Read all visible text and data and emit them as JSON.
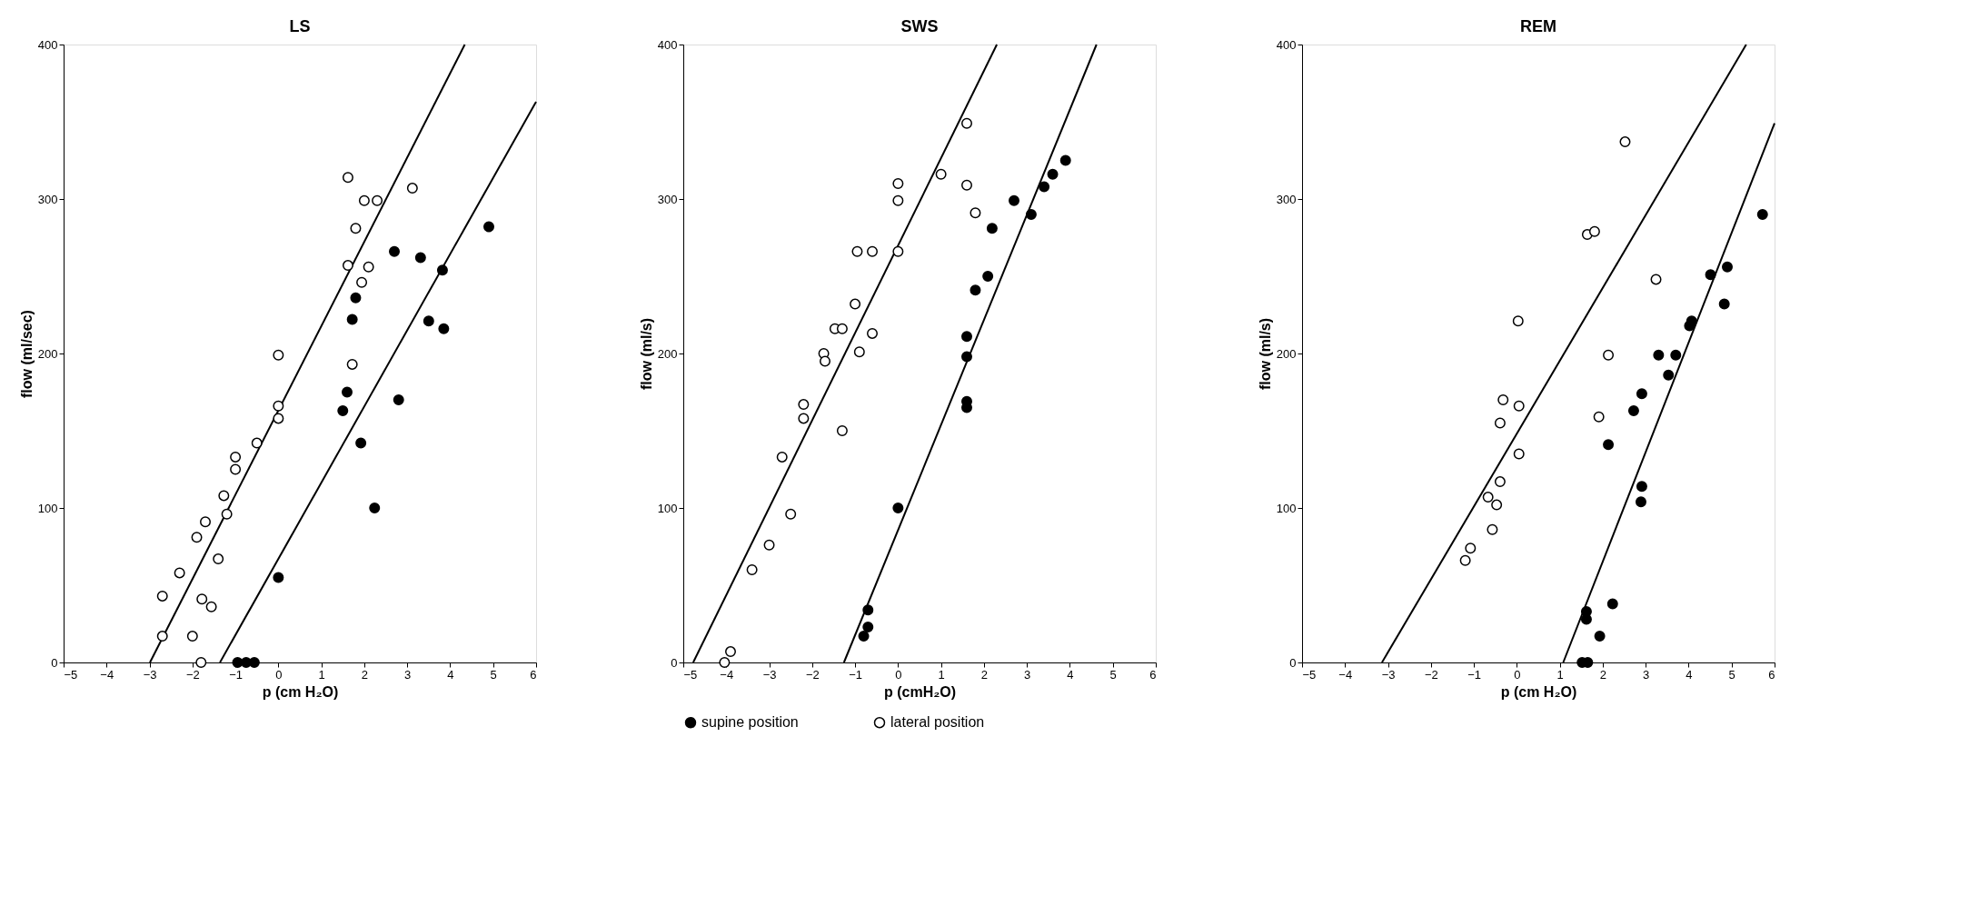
{
  "chart_data": [
    {
      "type": "scatter",
      "title": "LS",
      "xlabel": "p (cm H₂O)",
      "ylabel": "flow (ml/sec)",
      "xlim": [
        -5,
        6
      ],
      "ylim": [
        0,
        400
      ],
      "xticks": [
        -5,
        -4,
        -3,
        -2,
        -1,
        0,
        1,
        2,
        3,
        4,
        5,
        6
      ],
      "yticks": [
        0,
        100,
        200,
        300,
        400
      ],
      "grid": false,
      "legend": false,
      "marker": "circle",
      "series": [
        {
          "color": "#000000",
          "x": [
            4.9,
            2.7,
            3.31,
            3.82,
            1.8,
            1.72,
            3.5,
            3.85,
            1.6,
            1.5,
            2.8,
            1.92,
            2.24,
            0,
            -0.95,
            -0.75,
            -0.56
          ],
          "values": [
            282,
            266,
            262,
            254,
            236,
            222,
            221,
            216,
            175,
            163,
            170,
            142,
            100,
            55,
            0,
            0,
            0
          ]
        },
        {
          "color": "#ffffff",
          "x": [
            1.62,
            3.12,
            2.0,
            2.3,
            1.8,
            1.62,
            2.1,
            1.94,
            0,
            1.72,
            0,
            0,
            -0.5,
            -1.0,
            -1.0,
            -1.27,
            -1.2,
            -1.7,
            -1.9,
            -1.4,
            -2.3,
            -2.7,
            -1.78,
            -1.56,
            -2.7,
            -2.0,
            -1.8
          ],
          "values": [
            314,
            307,
            299,
            299,
            281,
            257,
            256,
            246,
            199,
            193,
            166,
            158,
            142,
            133,
            125,
            108,
            96,
            91,
            81,
            67,
            58,
            43,
            41,
            36,
            17,
            17,
            0
          ]
        },
        {
          "type": "line",
          "marker": "none",
          "color": "#000000",
          "x": [
            -2.99,
            4.34
          ],
          "values": [
            0,
            400
          ]
        },
        {
          "type": "line",
          "marker": "none",
          "color": "#000000",
          "x": [
            -1.36,
            6.0
          ],
          "values": [
            0,
            363
          ]
        }
      ]
    },
    {
      "type": "scatter",
      "title": "SWS",
      "xlabel": "p (cmH₂O)",
      "ylabel": "flow (ml/s)",
      "xlim": [
        -5,
        6
      ],
      "ylim": [
        0,
        400
      ],
      "xticks": [
        -5,
        -4,
        -3,
        -2,
        -1,
        0,
        1,
        2,
        3,
        4,
        5,
        6
      ],
      "yticks": [
        0,
        100,
        200,
        300,
        400
      ],
      "grid": false,
      "legend": "bottom",
      "marker": "circle",
      "series": [
        {
          "name": "supine position",
          "color": "#000000",
          "x": [
            3.9,
            3.6,
            3.4,
            2.7,
            3.1,
            2.19,
            2.09,
            1.8,
            1.6,
            1.6,
            1.6,
            1.6,
            0,
            -0.7,
            -0.7,
            -0.8
          ],
          "values": [
            325,
            316,
            308,
            299,
            290,
            281,
            250,
            241,
            211,
            198,
            169,
            165,
            100,
            34,
            23,
            17
          ]
        },
        {
          "name": "lateral position",
          "color": "#ffffff",
          "x": [
            1.6,
            1.0,
            1.6,
            0,
            0,
            1.8,
            -0.95,
            -0.6,
            0,
            -1.0,
            -1.47,
            -1.3,
            -0.6,
            -0.9,
            -1.73,
            -1.7,
            -2.2,
            -2.2,
            -1.3,
            -2.7,
            -2.5,
            -3.0,
            -3.4,
            -3.9,
            -4.04
          ],
          "values": [
            349,
            316,
            309,
            310,
            299,
            291,
            266,
            266,
            266,
            232,
            216,
            216,
            213,
            201,
            200,
            195,
            167,
            158,
            150,
            133,
            96,
            76,
            60,
            7,
            0
          ]
        },
        {
          "type": "line",
          "marker": "none",
          "color": "#000000",
          "x": [
            -4.77,
            2.3
          ],
          "values": [
            0,
            400
          ]
        },
        {
          "type": "line",
          "marker": "none",
          "color": "#000000",
          "x": [
            -1.26,
            4.62
          ],
          "values": [
            0,
            400
          ]
        }
      ]
    },
    {
      "type": "scatter",
      "title": "REM",
      "xlabel": "p (cm H₂O)",
      "ylabel": "flow (ml/s)",
      "xlim": [
        -5,
        6
      ],
      "ylim": [
        0,
        400
      ],
      "xticks": [
        -5,
        -4,
        -3,
        -2,
        -1,
        0,
        1,
        2,
        3,
        4,
        5,
        6
      ],
      "yticks": [
        0,
        100,
        200,
        300,
        400
      ],
      "grid": false,
      "legend": false,
      "marker": "circle",
      "series": [
        {
          "color": "#000000",
          "x": [
            5.72,
            4.9,
            4.51,
            4.83,
            4.07,
            4.02,
            3.3,
            3.7,
            3.53,
            2.91,
            2.72,
            2.13,
            2.91,
            2.89,
            2.23,
            1.62,
            1.62,
            1.93,
            1.52,
            1.65
          ],
          "values": [
            290,
            256,
            251,
            232,
            221,
            218,
            199,
            199,
            186,
            174,
            163,
            141,
            114,
            104,
            38,
            33,
            28,
            17,
            0,
            0
          ]
        },
        {
          "color": "#ffffff",
          "x": [
            2.52,
            1.64,
            1.81,
            3.24,
            0.03,
            2.13,
            -0.32,
            0.05,
            1.91,
            -0.39,
            0.05,
            -0.39,
            -0.67,
            -0.47,
            -0.57,
            -1.08,
            -1.2
          ],
          "values": [
            337,
            277,
            279,
            248,
            221,
            199,
            170,
            166,
            159,
            155,
            135,
            117,
            107,
            102,
            86,
            74,
            66
          ]
        },
        {
          "type": "line",
          "marker": "none",
          "color": "#000000",
          "x": [
            -3.14,
            5.34
          ],
          "values": [
            0,
            400
          ]
        },
        {
          "type": "line",
          "marker": "none",
          "color": "#000000",
          "x": [
            1.08,
            6.0
          ],
          "values": [
            0,
            349
          ]
        }
      ]
    }
  ]
}
